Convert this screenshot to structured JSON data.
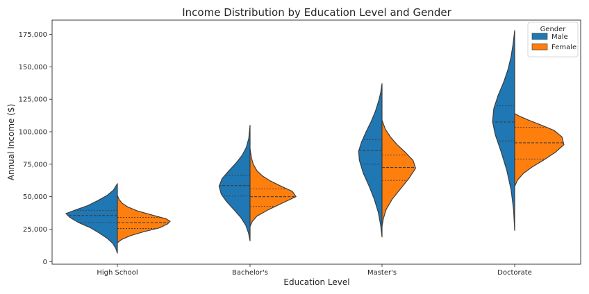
{
  "chart_data": {
    "type": "violin",
    "title": "Income Distribution by Education Level and Gender",
    "xlabel": "Education Level",
    "ylabel": "Annual Income ($)",
    "ylim": [
      -2000,
      186000
    ],
    "y_ticks": [
      0,
      25000,
      50000,
      75000,
      100000,
      125000,
      150000,
      175000
    ],
    "y_tick_labels": [
      "0",
      "25,000",
      "50,000",
      "75,000",
      "100,000",
      "125,000",
      "150,000",
      "175,000"
    ],
    "categories": [
      "High School",
      "Bachelor's",
      "Master's",
      "Doctorate"
    ],
    "legend": {
      "title": "Gender",
      "placement": "top-right"
    },
    "grid": false,
    "series": [
      {
        "name": "Male",
        "color": "#1f77b4",
        "violins": [
          {
            "category": "High School",
            "min": 6500,
            "max": 60000,
            "q1": 30000,
            "median": 35500,
            "q3": 39500,
            "profile": [
              [
                6500,
                0
              ],
              [
                10000,
                0.03
              ],
              [
                14000,
                0.09
              ],
              [
                18000,
                0.2
              ],
              [
                22000,
                0.35
              ],
              [
                26000,
                0.52
              ],
              [
                30000,
                0.75
              ],
              [
                34000,
                0.92
              ],
              [
                37000,
                1.0
              ],
              [
                40000,
                0.8
              ],
              [
                43000,
                0.58
              ],
              [
                47000,
                0.38
              ],
              [
                51000,
                0.2
              ],
              [
                55000,
                0.08
              ],
              [
                60000,
                0
              ]
            ]
          },
          {
            "category": "Bachelor's",
            "min": 16000,
            "max": 105000,
            "q1": 50500,
            "median": 58500,
            "q3": 66500,
            "profile": [
              [
                16000,
                0
              ],
              [
                22000,
                0.05
              ],
              [
                28000,
                0.14
              ],
              [
                34000,
                0.3
              ],
              [
                40000,
                0.52
              ],
              [
                46000,
                0.75
              ],
              [
                52000,
                0.93
              ],
              [
                58000,
                1.0
              ],
              [
                64000,
                0.9
              ],
              [
                70000,
                0.68
              ],
              [
                76000,
                0.45
              ],
              [
                82000,
                0.25
              ],
              [
                88000,
                0.12
              ],
              [
                95000,
                0.04
              ],
              [
                105000,
                0
              ]
            ]
          },
          {
            "category": "Master's",
            "min": 19000,
            "max": 137000,
            "q1": 75000,
            "median": 85500,
            "q3": 94000,
            "profile": [
              [
                19000,
                0
              ],
              [
                28000,
                0.06
              ],
              [
                38000,
                0.16
              ],
              [
                48000,
                0.33
              ],
              [
                58000,
                0.55
              ],
              [
                68000,
                0.8
              ],
              [
                78000,
                0.97
              ],
              [
                85000,
                1.0
              ],
              [
                92000,
                0.88
              ],
              [
                100000,
                0.68
              ],
              [
                108000,
                0.46
              ],
              [
                116000,
                0.28
              ],
              [
                124000,
                0.14
              ],
              [
                130000,
                0.06
              ],
              [
                137000,
                0
              ]
            ]
          },
          {
            "category": "Doctorate",
            "min": 24000,
            "max": 178000,
            "q1": 93000,
            "median": 107500,
            "q3": 120000,
            "profile": [
              [
                24000,
                0
              ],
              [
                40000,
                0.05
              ],
              [
                55000,
                0.16
              ],
              [
                70000,
                0.35
              ],
              [
                85000,
                0.62
              ],
              [
                98000,
                0.88
              ],
              [
                108000,
                1.0
              ],
              [
                118000,
                0.94
              ],
              [
                128000,
                0.75
              ],
              [
                138000,
                0.5
              ],
              [
                148000,
                0.3
              ],
              [
                158000,
                0.16
              ],
              [
                168000,
                0.07
              ],
              [
                178000,
                0
              ]
            ]
          }
        ]
      },
      {
        "name": "Female",
        "color": "#ff7f0e",
        "violins": [
          {
            "category": "High School",
            "min": 14500,
            "max": 51000,
            "q1": 25500,
            "median": 30000,
            "q3": 34000,
            "profile": [
              [
                14500,
                0
              ],
              [
                17000,
                0.08
              ],
              [
                20000,
                0.25
              ],
              [
                23000,
                0.5
              ],
              [
                26000,
                0.8
              ],
              [
                29000,
                0.95
              ],
              [
                31000,
                1.0
              ],
              [
                33000,
                0.92
              ],
              [
                36000,
                0.65
              ],
              [
                39000,
                0.38
              ],
              [
                42000,
                0.2
              ],
              [
                45000,
                0.09
              ],
              [
                48000,
                0.03
              ],
              [
                51000,
                0
              ]
            ]
          },
          {
            "category": "Bachelor's",
            "min": 27000,
            "max": 87000,
            "q1": 42500,
            "median": 50000,
            "q3": 56000,
            "profile": [
              [
                27000,
                0
              ],
              [
                31000,
                0.05
              ],
              [
                35000,
                0.15
              ],
              [
                40000,
                0.4
              ],
              [
                45000,
                0.7
              ],
              [
                50000,
                1.0
              ],
              [
                54000,
                0.92
              ],
              [
                58000,
                0.68
              ],
              [
                62000,
                0.45
              ],
              [
                66000,
                0.27
              ],
              [
                70000,
                0.15
              ],
              [
                75000,
                0.07
              ],
              [
                80000,
                0.03
              ],
              [
                87000,
                0
              ]
            ]
          },
          {
            "category": "Master's",
            "min": 27000,
            "max": 109000,
            "q1": 62500,
            "median": 72500,
            "q3": 82000,
            "profile": [
              [
                27000,
                0
              ],
              [
                33000,
                0.04
              ],
              [
                40000,
                0.12
              ],
              [
                48000,
                0.3
              ],
              [
                56000,
                0.55
              ],
              [
                64000,
                0.8
              ],
              [
                72000,
                1.0
              ],
              [
                78000,
                0.92
              ],
              [
                84000,
                0.7
              ],
              [
                90000,
                0.45
              ],
              [
                96000,
                0.25
              ],
              [
                102000,
                0.1
              ],
              [
                109000,
                0
              ]
            ]
          },
          {
            "category": "Doctorate",
            "min": 58000,
            "max": 114000,
            "q1": 79000,
            "median": 91500,
            "q3": 103500,
            "profile": [
              [
                58000,
                0
              ],
              [
                63000,
                0.06
              ],
              [
                68000,
                0.18
              ],
              [
                73000,
                0.36
              ],
              [
                78000,
                0.58
              ],
              [
                84000,
                0.82
              ],
              [
                90000,
                1.0
              ],
              [
                96000,
                0.96
              ],
              [
                101000,
                0.8
              ],
              [
                105000,
                0.55
              ],
              [
                109000,
                0.28
              ],
              [
                112000,
                0.1
              ],
              [
                114000,
                0
              ]
            ]
          }
        ]
      }
    ]
  }
}
